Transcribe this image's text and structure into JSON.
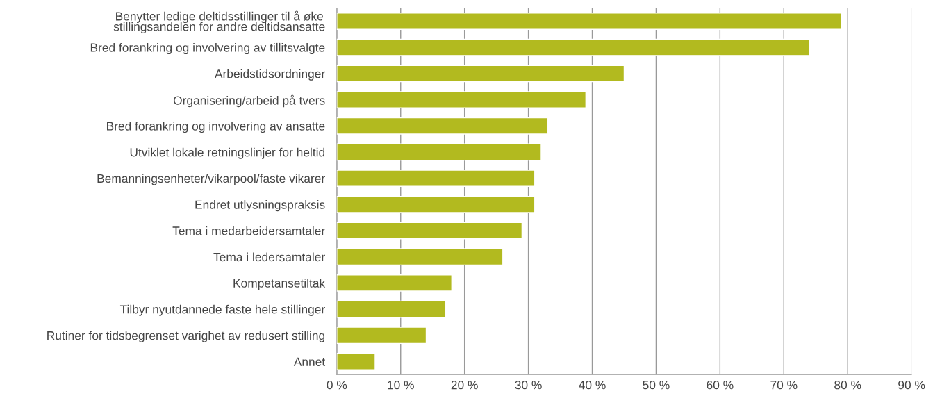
{
  "chart_data": {
    "type": "bar",
    "orientation": "horizontal",
    "categories": [
      "Benytter ledige deltidsstillinger til å øke\nstillingsandelen for andre deltidsansatte",
      "Bred forankring og involvering av tillitsvalgte",
      "Arbeidstidsordninger",
      "Organisering/arbeid på tvers",
      "Bred forankring og involvering av ansatte",
      "Utviklet lokale retningslinjer for heltid",
      "Bemanningsenheter/vikarpool/faste vikarer",
      "Endret utlysningspraksis",
      "Tema i medarbeidersamtaler",
      "Tema i ledersamtaler",
      "Kompetansetiltak",
      "Tilbyr nyutdannede faste hele stillinger",
      "Rutiner for tidsbegrenset varighet av redusert stilling",
      "Annet"
    ],
    "values": [
      79,
      74,
      45,
      39,
      33,
      32,
      31,
      31,
      29,
      26,
      18,
      17,
      14,
      6
    ],
    "color": "#b2ba1f",
    "xlim": [
      0,
      90
    ],
    "xticks": [
      {
        "value": 0,
        "label": "0 %"
      },
      {
        "value": 10,
        "label": "10 %"
      },
      {
        "value": 20,
        "label": "20 %"
      },
      {
        "value": 30,
        "label": "30 %"
      },
      {
        "value": 40,
        "label": "40 %"
      },
      {
        "value": 50,
        "label": "50 %"
      },
      {
        "value": 60,
        "label": "60 %"
      },
      {
        "value": 70,
        "label": "70 %"
      },
      {
        "value": 80,
        "label": "80 %"
      },
      {
        "value": 90,
        "label": "90 %"
      }
    ],
    "grid": "x"
  }
}
